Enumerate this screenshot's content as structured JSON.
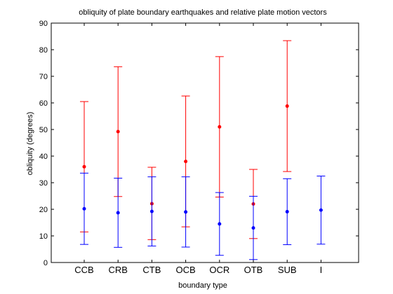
{
  "chart_data": {
    "type": "scatter",
    "title": "obliquity of plate boundary earthquakes and relative plate motion vectors",
    "xlabel": "boundary type",
    "ylabel": "obliquity (degrees)",
    "categories": [
      "CCB",
      "CRB",
      "CTB",
      "OCB",
      "OCR",
      "OTB",
      "SUB",
      "I"
    ],
    "ylim": [
      0,
      90
    ],
    "yticks": [
      0,
      10,
      20,
      30,
      40,
      50,
      60,
      70,
      80,
      90
    ],
    "grid": false,
    "series": [
      {
        "color": "#ff0000",
        "error_bars": true,
        "points": [
          {
            "category": "CCB",
            "value": 36.0,
            "low": 11.5,
            "high": 60.5
          },
          {
            "category": "CRB",
            "value": 49.2,
            "low": 24.8,
            "high": 73.6
          },
          {
            "category": "CTB",
            "value": 22.1,
            "low": 8.6,
            "high": 35.8
          },
          {
            "category": "OCB",
            "value": 38.0,
            "low": 13.4,
            "high": 62.6
          },
          {
            "category": "OCR",
            "value": 51.0,
            "low": 24.6,
            "high": 77.4
          },
          {
            "category": "OTB",
            "value": 22.0,
            "low": 9.0,
            "high": 35.0
          },
          {
            "category": "SUB",
            "value": 58.8,
            "low": 34.2,
            "high": 83.4
          }
        ]
      },
      {
        "color": "#0000ff",
        "error_bars": true,
        "points": [
          {
            "category": "CCB",
            "value": 20.2,
            "low": 6.8,
            "high": 33.6
          },
          {
            "category": "CRB",
            "value": 18.7,
            "low": 5.7,
            "high": 31.7
          },
          {
            "category": "CTB",
            "value": 19.2,
            "low": 6.2,
            "high": 32.2
          },
          {
            "category": "OCB",
            "value": 19.0,
            "low": 5.8,
            "high": 32.2
          },
          {
            "category": "OCR",
            "value": 14.5,
            "low": 2.7,
            "high": 26.3
          },
          {
            "category": "OTB",
            "value": 13.0,
            "low": 1.1,
            "high": 24.9
          },
          {
            "category": "SUB",
            "value": 19.1,
            "low": 6.7,
            "high": 31.5
          },
          {
            "category": "I",
            "value": 19.7,
            "low": 6.9,
            "high": 32.5
          }
        ]
      }
    ]
  }
}
